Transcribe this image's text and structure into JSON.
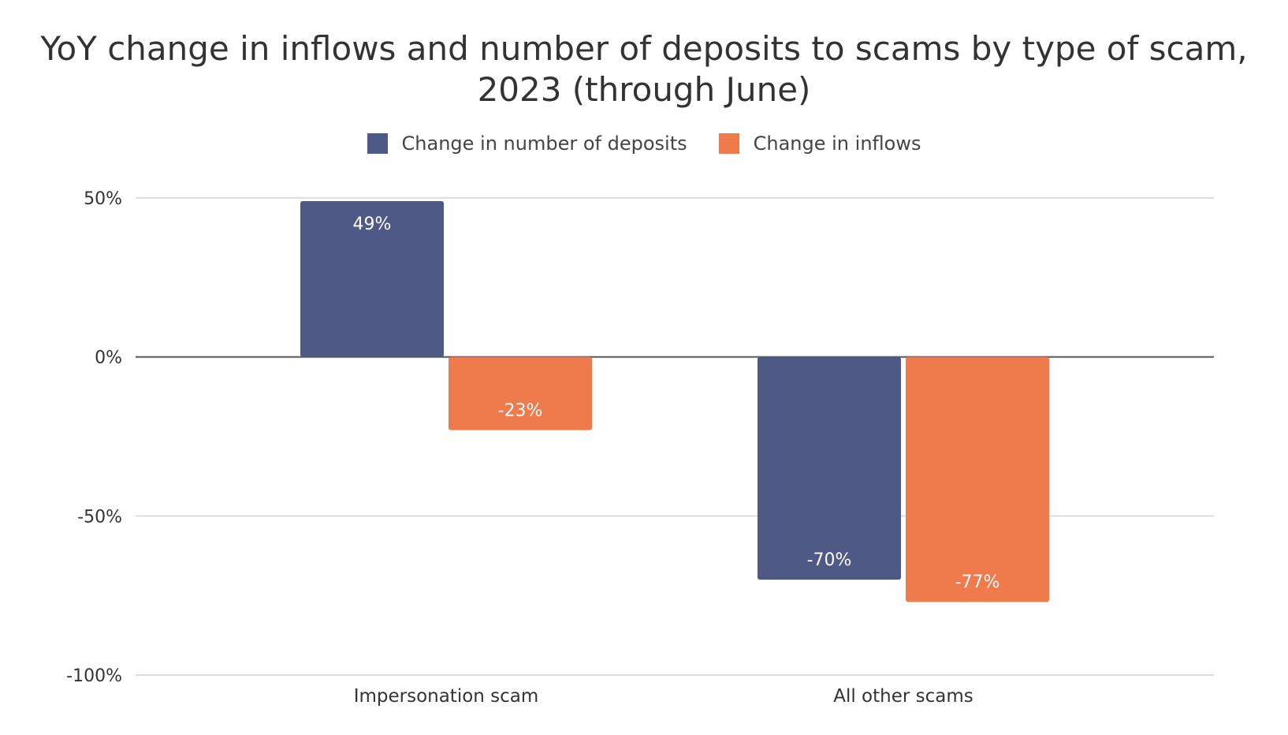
{
  "chart_data": {
    "type": "bar",
    "title_lines": [
      "YoY change in inflows and number of deposits to scams by type of scam,",
      "2023 (through June)"
    ],
    "categories": [
      "Impersonation scam",
      "All other scams"
    ],
    "series": [
      {
        "name": "Change in number of deposits",
        "color": "#4e5a85",
        "values": [
          49,
          -70
        ],
        "labels": [
          "49%",
          "-70%"
        ]
      },
      {
        "name": "Change in inflows",
        "color": "#ef7a4c",
        "values": [
          -23,
          -77
        ],
        "labels": [
          "-23%",
          "-77%"
        ]
      }
    ],
    "ylim": [
      -100,
      50
    ],
    "yticks": [
      50,
      0,
      -50,
      -100
    ],
    "ytick_labels": [
      "50%",
      "0%",
      "-50%",
      "-100%"
    ],
    "grid": true,
    "legend_position": "top-center",
    "xlabel": "",
    "ylabel": ""
  }
}
